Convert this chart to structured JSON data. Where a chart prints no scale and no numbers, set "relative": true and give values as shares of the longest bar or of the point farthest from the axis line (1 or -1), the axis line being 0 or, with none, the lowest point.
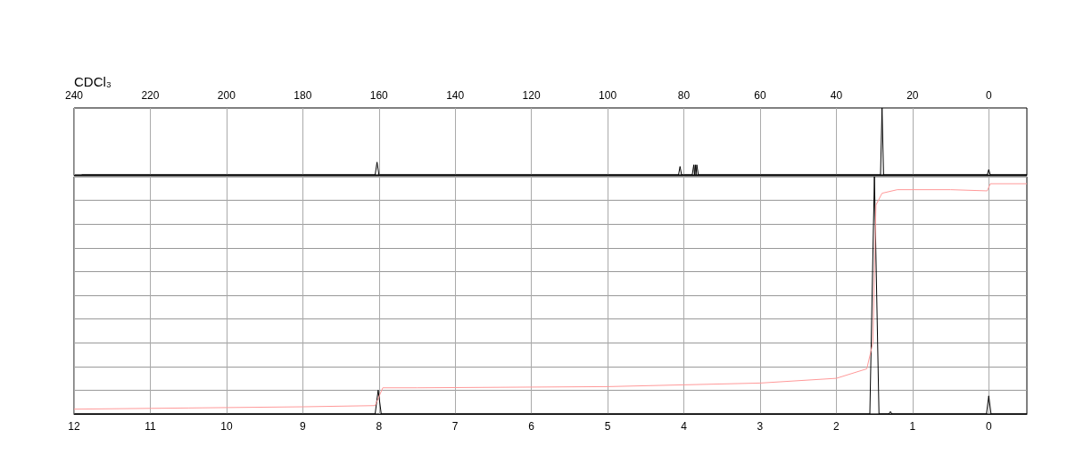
{
  "chart_data": [
    {
      "type": "line",
      "relative": true,
      "annotations": [
        "CDCl₃"
      ],
      "xlim": [
        240,
        -10
      ],
      "xticks": [
        240,
        220,
        200,
        180,
        160,
        140,
        120,
        100,
        80,
        60,
        40,
        20,
        0
      ],
      "grid": "x",
      "color": "#000000",
      "x": [
        238,
        161,
        160.5,
        160,
        81.4,
        81,
        80.6,
        77.8,
        77.4,
        77.2,
        77,
        76.8,
        76.6,
        76.2,
        28.4,
        28,
        27.6,
        0.4,
        0,
        -0.4,
        -10
      ],
      "values": [
        0,
        0,
        0.19,
        0,
        0,
        0.125,
        0,
        0,
        0.15,
        0,
        0.15,
        0,
        0.15,
        0,
        0,
        1,
        0,
        0,
        0.08,
        0,
        0
      ]
    },
    {
      "type": "line",
      "relative": true,
      "xlim": [
        12,
        -0.5
      ],
      "xticks": [
        12,
        11,
        10,
        9,
        8,
        7,
        6,
        5,
        4,
        3,
        2,
        1,
        0
      ],
      "grid": true,
      "series": [
        {
          "color": "#000000",
          "x": [
            12,
            8.05,
            8.01,
            7.97,
            1.56,
            1.5,
            1.44,
            1.31,
            1.29,
            1.27,
            0.03,
            0,
            -0.03,
            -0.5
          ],
          "values": [
            0,
            0,
            0.1,
            0,
            0,
            1,
            0,
            0,
            0.01,
            0,
            0,
            0.076,
            0,
            0
          ]
        },
        {
          "color": "#ff9999",
          "x": [
            12,
            10.5,
            9,
            8.05,
            7.95,
            7.5,
            5,
            3,
            2,
            1.6,
            1.52,
            1.48,
            1.4,
            1.2,
            0.5,
            0.02,
            -0.02,
            -0.5
          ],
          "values": [
            0.02,
            0.025,
            0.03,
            0.035,
            0.11,
            0.11,
            0.115,
            0.13,
            0.15,
            0.19,
            0.3,
            0.88,
            0.93,
            0.945,
            0.945,
            0.94,
            0.97,
            0.97
          ]
        }
      ]
    }
  ]
}
